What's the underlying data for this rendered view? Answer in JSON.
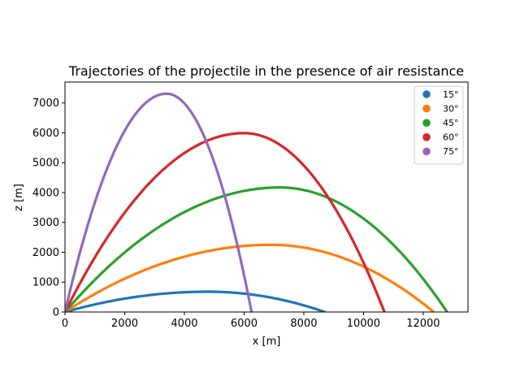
{
  "chart_data": {
    "type": "line",
    "title": "Trajectories of the projectile in the presence of air resistance",
    "xlabel": "x [m]",
    "ylabel": "z [m]",
    "xlim": [
      0,
      13500
    ],
    "ylim": [
      0,
      7700
    ],
    "xticks": [
      0,
      2000,
      4000,
      6000,
      8000,
      10000,
      12000
    ],
    "yticks": [
      0,
      1000,
      2000,
      3000,
      4000,
      5000,
      6000,
      7000
    ],
    "grid": false,
    "legend": "top-right",
    "series": [
      {
        "name": "15°",
        "color": "#1f77b4",
        "range": 8700,
        "apex_x": 4800,
        "apex_z": 680
      },
      {
        "name": "30°",
        "color": "#ff7f0e",
        "range": 12350,
        "apex_x": 6900,
        "apex_z": 2250
      },
      {
        "name": "45°",
        "color": "#2ca02c",
        "range": 12800,
        "apex_x": 7200,
        "apex_z": 4170
      },
      {
        "name": "60°",
        "color": "#d62728",
        "range": 10700,
        "apex_x": 6000,
        "apex_z": 5990
      },
      {
        "name": "75°",
        "color": "#9467bd",
        "range": 6250,
        "apex_x": 3400,
        "apex_z": 7310
      }
    ]
  }
}
